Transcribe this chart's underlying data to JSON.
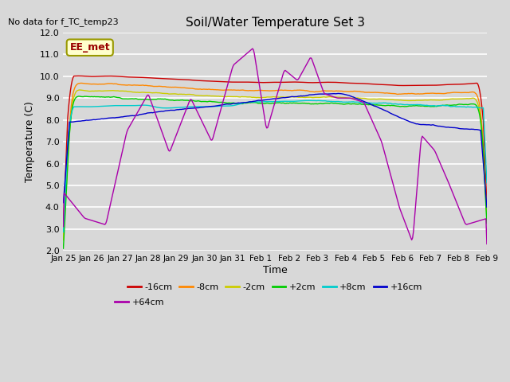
{
  "title": "Soil/Water Temperature Set 3",
  "xlabel": "Time",
  "ylabel": "Temperature (C)",
  "top_left_note": "No data for f_TC_temp23",
  "box_label": "EE_met",
  "ylim": [
    2.0,
    12.0
  ],
  "yticks": [
    2.0,
    3.0,
    4.0,
    5.0,
    6.0,
    7.0,
    8.0,
    9.0,
    10.0,
    11.0,
    12.0
  ],
  "xtick_labels": [
    "Jan 25",
    "Jan 26",
    "Jan 27",
    "Jan 28",
    "Jan 29",
    "Jan 30",
    "Jan 31",
    "Feb 1",
    "Feb 2",
    "Feb 3",
    "Feb 4",
    "Feb 5",
    "Feb 6",
    "Feb 7",
    "Feb 8",
    "Feb 9"
  ],
  "bg_color": "#d8d8d8",
  "plot_bg_color": "#d8d8d8",
  "grid_color": "#ffffff",
  "series": [
    {
      "label": "-16cm",
      "color": "#cc0000"
    },
    {
      "label": "-8cm",
      "color": "#ff8800"
    },
    {
      "label": "-2cm",
      "color": "#cccc00"
    },
    {
      "label": "+2cm",
      "color": "#00cc00"
    },
    {
      "label": "+8cm",
      "color": "#00cccc"
    },
    {
      "label": "+16cm",
      "color": "#0000cc"
    },
    {
      "label": "+64cm",
      "color": "#aa00aa"
    }
  ],
  "n_points": 480
}
